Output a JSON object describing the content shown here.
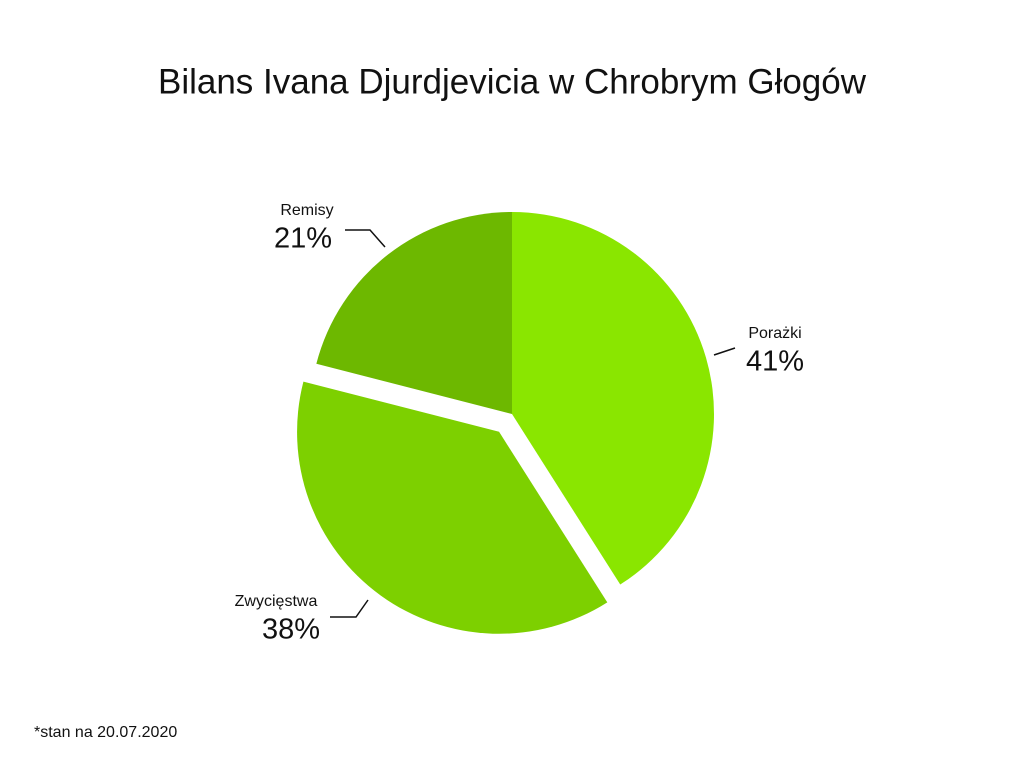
{
  "chart_data": {
    "type": "pie",
    "title": "Bilans Ivana Djurdjevicia w Chrobrym Głogów",
    "categories": [
      "Porażki",
      "Zwycięstwa",
      "Remisy"
    ],
    "values": [
      41,
      38,
      21
    ],
    "value_labels": [
      "41%",
      "38%",
      "21%"
    ],
    "colors": [
      "#8ae600",
      "#7dd000",
      "#6db800"
    ],
    "footnote": "*stan na 20.07.2020"
  }
}
